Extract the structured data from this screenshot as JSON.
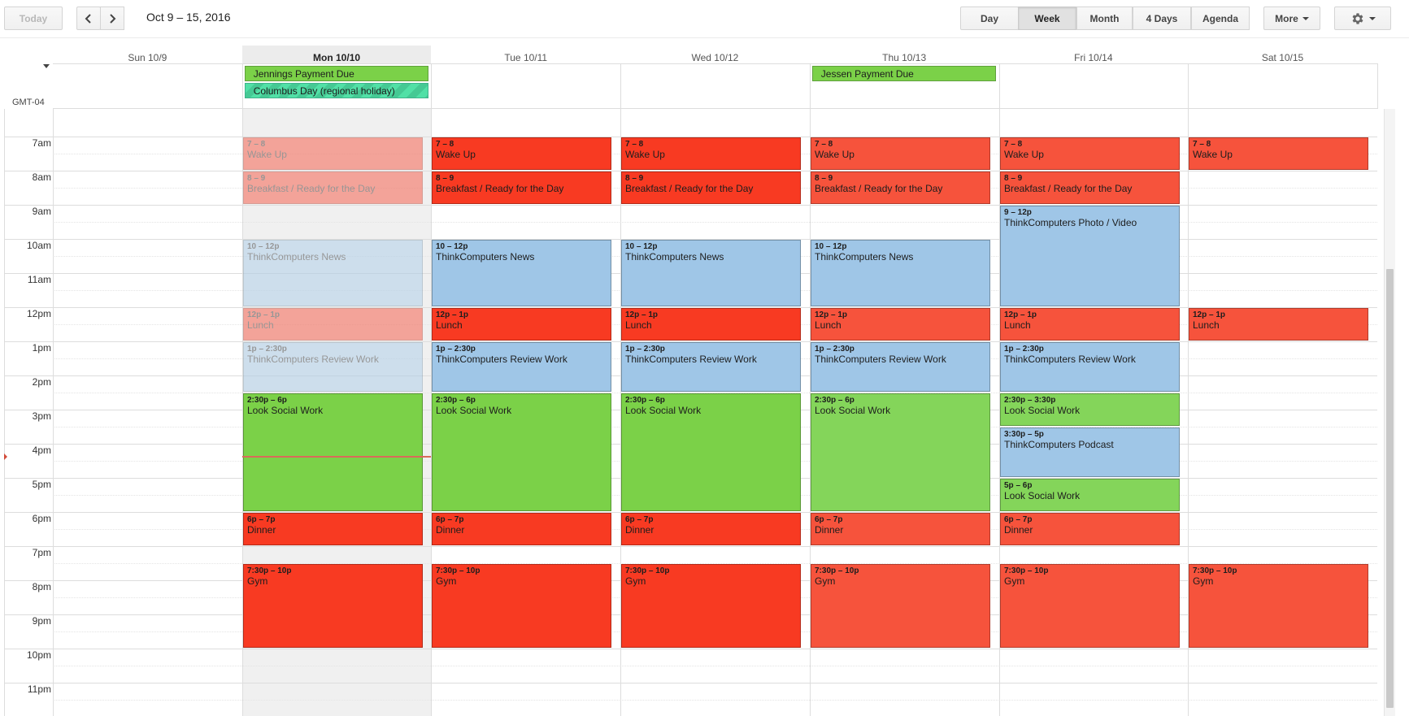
{
  "toolbar": {
    "today_label": "Today",
    "prev_icon": "chevron-left-icon",
    "next_icon": "chevron-right-icon",
    "date_range": "Oct 9 – 15, 2016",
    "views": [
      "Day",
      "Week",
      "Month",
      "4 Days",
      "Agenda"
    ],
    "active_view": "Week",
    "more_label": "More",
    "settings_icon": "gear-icon"
  },
  "timezone": "GMT-04",
  "days": [
    {
      "label": "Sun 10/9",
      "today": false
    },
    {
      "label": "Mon 10/10",
      "today": true
    },
    {
      "label": "Tue 10/11",
      "today": false
    },
    {
      "label": "Wed 10/12",
      "today": false
    },
    {
      "label": "Thu 10/13",
      "today": false
    },
    {
      "label": "Fri 10/14",
      "today": false
    },
    {
      "label": "Sat 10/15",
      "today": false
    }
  ],
  "all_day_events": [
    {
      "title": "Jennings Payment Due",
      "day": 1,
      "row": 0,
      "kind": "payment"
    },
    {
      "title": "Columbus Day (regional holiday)",
      "day": 1,
      "row": 1,
      "kind": "holiday"
    },
    {
      "title": "Jessen Payment Due",
      "day": 4,
      "row": 0,
      "kind": "payment"
    }
  ],
  "hours": [
    "7am",
    "8am",
    "9am",
    "10am",
    "11am",
    "12pm",
    "1pm",
    "2pm",
    "3pm",
    "4pm",
    "5pm",
    "6pm",
    "7pm",
    "8pm",
    "9pm",
    "10pm",
    "11pm"
  ],
  "visible_start_hour": 6.2,
  "current_time_hour": 16.37,
  "colors": {
    "red": "#f83a22",
    "red_alt": "#f6533c",
    "blue": "#9fc6e7",
    "green": "#7bd148",
    "green_alt": "#84d55a",
    "faded_red": "#f8c7c0",
    "faded_blue": "#e3eef8",
    "allday_green": "#7bd148"
  },
  "events": [
    {
      "day": 1,
      "start": 7,
      "end": 8,
      "time": "7 – 8",
      "title": "Wake Up",
      "color": "red",
      "faded": true
    },
    {
      "day": 1,
      "start": 8,
      "end": 9,
      "time": "8 – 9",
      "title": "Breakfast / Ready for the Day",
      "color": "red",
      "faded": true
    },
    {
      "day": 1,
      "start": 10,
      "end": 12,
      "time": "10 – 12p",
      "title": "ThinkComputers News",
      "color": "blue",
      "faded": true
    },
    {
      "day": 1,
      "start": 12,
      "end": 13,
      "time": "12p – 1p",
      "title": "Lunch",
      "color": "red",
      "faded": true
    },
    {
      "day": 1,
      "start": 13,
      "end": 14.5,
      "time": "1p – 2:30p",
      "title": "ThinkComputers Review Work",
      "color": "blue",
      "faded": true
    },
    {
      "day": 1,
      "start": 14.5,
      "end": 18,
      "time": "2:30p – 6p",
      "title": "Look Social Work",
      "color": "green",
      "faded": false
    },
    {
      "day": 1,
      "start": 18,
      "end": 19,
      "time": "6p – 7p",
      "title": "Dinner",
      "color": "red",
      "faded": false
    },
    {
      "day": 1,
      "start": 19.5,
      "end": 22,
      "time": "7:30p – 10p",
      "title": "Gym",
      "color": "red",
      "faded": false
    },
    {
      "day": 2,
      "start": 7,
      "end": 8,
      "time": "7 – 8",
      "title": "Wake Up",
      "color": "red"
    },
    {
      "day": 2,
      "start": 8,
      "end": 9,
      "time": "8 – 9",
      "title": "Breakfast / Ready for the Day",
      "color": "red"
    },
    {
      "day": 2,
      "start": 10,
      "end": 12,
      "time": "10 – 12p",
      "title": "ThinkComputers News",
      "color": "blue"
    },
    {
      "day": 2,
      "start": 12,
      "end": 13,
      "time": "12p – 1p",
      "title": "Lunch",
      "color": "red"
    },
    {
      "day": 2,
      "start": 13,
      "end": 14.5,
      "time": "1p – 2:30p",
      "title": "ThinkComputers Review Work",
      "color": "blue"
    },
    {
      "day": 2,
      "start": 14.5,
      "end": 18,
      "time": "2:30p – 6p",
      "title": "Look Social Work",
      "color": "green"
    },
    {
      "day": 2,
      "start": 18,
      "end": 19,
      "time": "6p – 7p",
      "title": "Dinner",
      "color": "red"
    },
    {
      "day": 2,
      "start": 19.5,
      "end": 22,
      "time": "7:30p – 10p",
      "title": "Gym",
      "color": "red"
    },
    {
      "day": 3,
      "start": 7,
      "end": 8,
      "time": "7 – 8",
      "title": "Wake Up",
      "color": "red"
    },
    {
      "day": 3,
      "start": 8,
      "end": 9,
      "time": "8 – 9",
      "title": "Breakfast / Ready for the Day",
      "color": "red"
    },
    {
      "day": 3,
      "start": 10,
      "end": 12,
      "time": "10 – 12p",
      "title": "ThinkComputers News",
      "color": "blue"
    },
    {
      "day": 3,
      "start": 12,
      "end": 13,
      "time": "12p – 1p",
      "title": "Lunch",
      "color": "red"
    },
    {
      "day": 3,
      "start": 13,
      "end": 14.5,
      "time": "1p – 2:30p",
      "title": "ThinkComputers Review Work",
      "color": "blue"
    },
    {
      "day": 3,
      "start": 14.5,
      "end": 18,
      "time": "2:30p – 6p",
      "title": "Look Social Work",
      "color": "green"
    },
    {
      "day": 3,
      "start": 18,
      "end": 19,
      "time": "6p – 7p",
      "title": "Dinner",
      "color": "red"
    },
    {
      "day": 3,
      "start": 19.5,
      "end": 22,
      "time": "7:30p – 10p",
      "title": "Gym",
      "color": "red"
    },
    {
      "day": 4,
      "start": 7,
      "end": 8,
      "time": "7 – 8",
      "title": "Wake Up",
      "color": "red_alt"
    },
    {
      "day": 4,
      "start": 8,
      "end": 9,
      "time": "8 – 9",
      "title": "Breakfast / Ready for the Day",
      "color": "red_alt"
    },
    {
      "day": 4,
      "start": 10,
      "end": 12,
      "time": "10 – 12p",
      "title": "ThinkComputers News",
      "color": "blue"
    },
    {
      "day": 4,
      "start": 12,
      "end": 13,
      "time": "12p – 1p",
      "title": "Lunch",
      "color": "red_alt"
    },
    {
      "day": 4,
      "start": 13,
      "end": 14.5,
      "time": "1p – 2:30p",
      "title": "ThinkComputers Review Work",
      "color": "blue"
    },
    {
      "day": 4,
      "start": 14.5,
      "end": 18,
      "time": "2:30p – 6p",
      "title": "Look Social Work",
      "color": "green_alt"
    },
    {
      "day": 4,
      "start": 18,
      "end": 19,
      "time": "6p – 7p",
      "title": "Dinner",
      "color": "red_alt"
    },
    {
      "day": 4,
      "start": 19.5,
      "end": 22,
      "time": "7:30p – 10p",
      "title": "Gym",
      "color": "red_alt"
    },
    {
      "day": 5,
      "start": 7,
      "end": 8,
      "time": "7 – 8",
      "title": "Wake Up",
      "color": "red_alt"
    },
    {
      "day": 5,
      "start": 8,
      "end": 9,
      "time": "8 – 9",
      "title": "Breakfast / Ready for the Day",
      "color": "red_alt"
    },
    {
      "day": 5,
      "start": 9,
      "end": 12,
      "time": "9 – 12p",
      "title": "ThinkComputers Photo / Video",
      "color": "blue"
    },
    {
      "day": 5,
      "start": 12,
      "end": 13,
      "time": "12p – 1p",
      "title": "Lunch",
      "color": "red_alt"
    },
    {
      "day": 5,
      "start": 13,
      "end": 14.5,
      "time": "1p – 2:30p",
      "title": "ThinkComputers Review Work",
      "color": "blue"
    },
    {
      "day": 5,
      "start": 14.5,
      "end": 15.5,
      "time": "2:30p – 3:30p",
      "title": "Look Social Work",
      "color": "green_alt"
    },
    {
      "day": 5,
      "start": 15.5,
      "end": 17,
      "time": "3:30p – 5p",
      "title": "ThinkComputers Podcast",
      "color": "blue"
    },
    {
      "day": 5,
      "start": 17,
      "end": 18,
      "time": "5p – 6p",
      "title": "Look Social Work",
      "color": "green_alt"
    },
    {
      "day": 5,
      "start": 18,
      "end": 19,
      "time": "6p – 7p",
      "title": "Dinner",
      "color": "red_alt"
    },
    {
      "day": 5,
      "start": 19.5,
      "end": 22,
      "time": "7:30p – 10p",
      "title": "Gym",
      "color": "red_alt"
    },
    {
      "day": 6,
      "start": 7,
      "end": 8,
      "time": "7 – 8",
      "title": "Wake Up",
      "color": "red_alt"
    },
    {
      "day": 6,
      "start": 12,
      "end": 13,
      "time": "12p – 1p",
      "title": "Lunch",
      "color": "red_alt"
    },
    {
      "day": 6,
      "start": 19.5,
      "end": 22,
      "time": "7:30p – 10p",
      "title": "Gym",
      "color": "red_alt"
    }
  ]
}
